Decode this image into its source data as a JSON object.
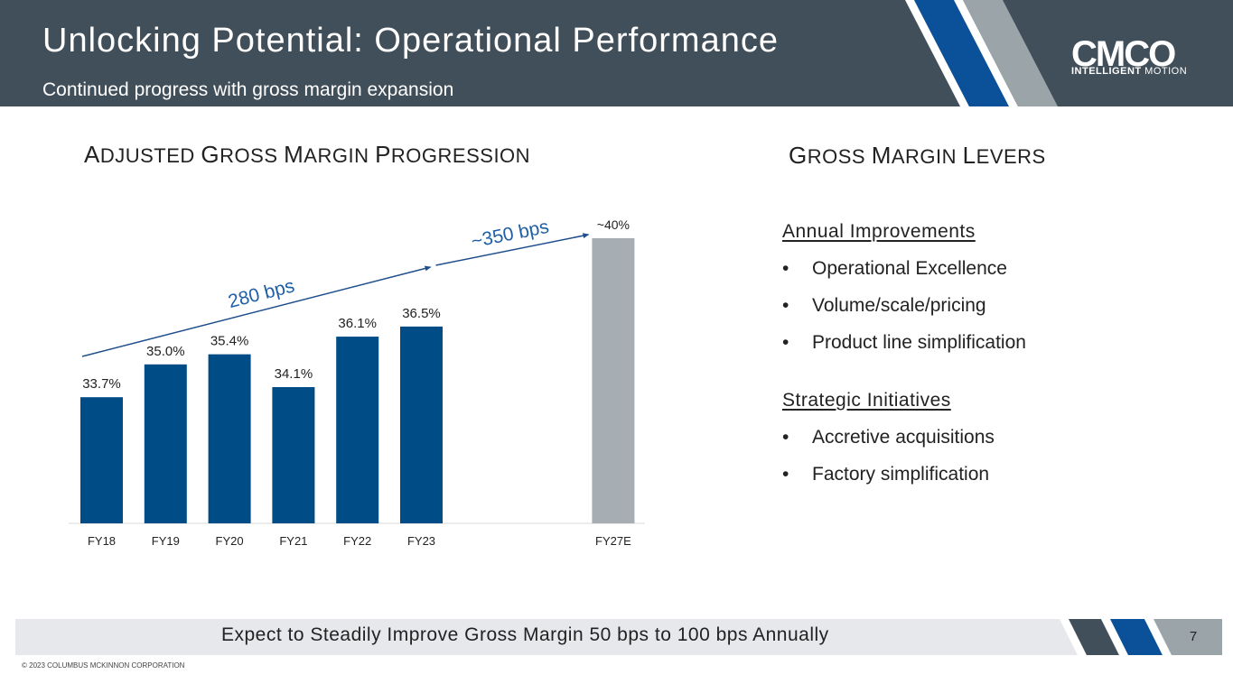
{
  "header": {
    "title": "Unlocking Potential: Operational Performance",
    "subtitle": "Continued progress with gross margin expansion",
    "logo_text": "CMCO",
    "logo_tag_bold": "INTELLIGENT",
    "logo_tag_rest": "MOTION",
    "colors": {
      "background": "#414f5a",
      "stripe_blue": "#0b5199",
      "stripe_gray": "#9ba4a9"
    }
  },
  "left_section": {
    "title_parts": [
      {
        "cap": "A",
        "rest": "DJUSTED "
      },
      {
        "cap": "G",
        "rest": "ROSS "
      },
      {
        "cap": "M",
        "rest": "ARGIN "
      },
      {
        "cap": "P",
        "rest": "ROGRESSION"
      }
    ]
  },
  "right_section": {
    "title_parts": [
      {
        "cap": "G",
        "rest": "ROSS "
      },
      {
        "cap": "M",
        "rest": "ARGIN "
      },
      {
        "cap": "L",
        "rest": "EVERS"
      }
    ],
    "groups": [
      {
        "heading": "Annual Improvements",
        "items": [
          "Operational Excellence",
          "Volume/scale/pricing",
          "Product line simplification"
        ]
      },
      {
        "heading": "Strategic Initiatives",
        "items": [
          "Accretive acquisitions",
          "Factory simplification"
        ]
      }
    ],
    "bullet": "•"
  },
  "chart_data": {
    "type": "bar",
    "title": "Adjusted Gross Margin Progression",
    "categories": [
      "FY18",
      "FY19",
      "FY20",
      "FY21",
      "FY22",
      "FY23",
      "FY27E"
    ],
    "values": [
      33.7,
      35.0,
      35.4,
      34.1,
      36.1,
      36.5,
      40.0
    ],
    "data_labels": [
      "33.7%",
      "35.0%",
      "35.4%",
      "34.1%",
      "36.1%",
      "36.5%",
      "~40%"
    ],
    "estimate_category": "FY27E",
    "ylim": [
      28.7,
      40.0
    ],
    "xlabel": "",
    "ylabel": "",
    "grid": false,
    "colors": {
      "actual": "#004c87",
      "estimate": "#a6aeb3",
      "arrow": "#1f4e8c",
      "annotation": "#1f5fa6"
    },
    "annotations": [
      {
        "text": "280 bps",
        "from": "FY18",
        "to": "FY23"
      },
      {
        "text": "~350 bps",
        "from": "FY23",
        "to": "FY27E"
      }
    ]
  },
  "footer": {
    "text": "Expect to Steadily Improve Gross Margin 50 bps to 100 bps Annually",
    "page_number": "7",
    "copyright": "© 2023 COLUMBUS MCKINNON CORPORATION",
    "colors": {
      "bar": "#e6e8eb",
      "stripe_dark": "#414f5a",
      "stripe_blue": "#0b5199",
      "stripe_gray": "#9ba4a9"
    }
  }
}
